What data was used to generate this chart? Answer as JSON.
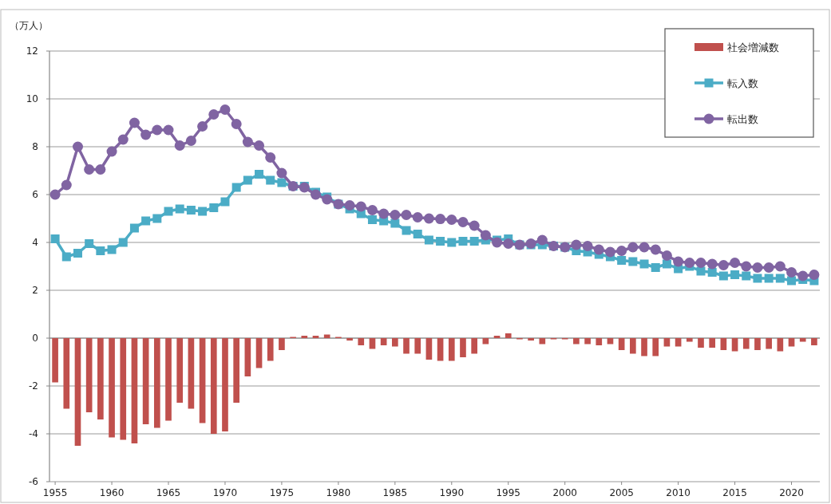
{
  "chart_data": {
    "type": "bar",
    "ylabel": "（万人）",
    "ylim": [
      -6,
      12
    ],
    "yticks": [
      -6,
      -4,
      -2,
      0,
      2,
      4,
      6,
      8,
      10,
      12
    ],
    "grid": "y",
    "legend": "top right",
    "categories": [
      "1955",
      null,
      null,
      null,
      null,
      "1960",
      null,
      null,
      null,
      null,
      "1965",
      null,
      null,
      null,
      null,
      "1970",
      null,
      null,
      null,
      null,
      "1975",
      null,
      null,
      null,
      null,
      "1980",
      null,
      null,
      null,
      null,
      "1985",
      null,
      null,
      null,
      null,
      "1990",
      null,
      null,
      null,
      null,
      "1995",
      null,
      null,
      null,
      null,
      "2000",
      null,
      null,
      null,
      null,
      "2005",
      null,
      null,
      null,
      null,
      "2010",
      null,
      null,
      null,
      null,
      "2015",
      null,
      null,
      null,
      null,
      "2020",
      null,
      null
    ],
    "series": [
      {
        "name": "社会増減数",
        "type": "bar",
        "color": "#c0504d",
        "values": [
          -1.85,
          -2.95,
          -4.5,
          -3.1,
          -3.4,
          -4.15,
          -4.25,
          -4.4,
          -3.6,
          -3.75,
          -3.45,
          -2.7,
          -2.95,
          -3.55,
          -4.0,
          -3.9,
          -2.7,
          -1.6,
          -1.25,
          -0.95,
          -0.5,
          0.05,
          0.1,
          0.1,
          0.15,
          0.05,
          -0.1,
          -0.3,
          -0.45,
          -0.3,
          -0.35,
          -0.65,
          -0.65,
          -0.9,
          -0.95,
          -0.95,
          -0.8,
          -0.65,
          -0.25,
          0.1,
          0.2,
          -0.05,
          -0.1,
          -0.25,
          -0.05,
          -0.05,
          -0.25,
          -0.25,
          -0.3,
          -0.25,
          -0.5,
          -0.65,
          -0.75,
          -0.75,
          -0.35,
          -0.35,
          -0.15,
          -0.4,
          -0.4,
          -0.5,
          -0.55,
          -0.45,
          -0.5,
          -0.45,
          -0.55,
          -0.35,
          -0.15,
          -0.3
        ]
      },
      {
        "name": "転入数",
        "type": "line",
        "marker": "square",
        "color": "#4bacc6",
        "values": [
          4.15,
          3.4,
          3.55,
          3.95,
          3.65,
          3.7,
          4.0,
          4.6,
          4.9,
          5.0,
          5.3,
          5.4,
          5.35,
          5.3,
          5.45,
          5.7,
          6.3,
          6.6,
          6.85,
          6.6,
          6.5,
          6.35,
          6.35,
          6.1,
          5.9,
          5.6,
          5.4,
          5.2,
          4.95,
          4.9,
          4.8,
          4.5,
          4.35,
          4.1,
          4.05,
          4.0,
          4.05,
          4.05,
          4.1,
          4.1,
          4.15,
          3.9,
          3.9,
          3.9,
          3.85,
          3.8,
          3.65,
          3.6,
          3.5,
          3.4,
          3.25,
          3.2,
          3.1,
          2.95,
          3.1,
          2.9,
          3.0,
          2.8,
          2.75,
          2.6,
          2.65,
          2.6,
          2.5,
          2.5,
          2.5,
          2.4,
          2.45,
          2.4
        ]
      },
      {
        "name": "転出数",
        "type": "line",
        "marker": "circle",
        "color": "#8064a2",
        "values": [
          6.0,
          6.4,
          8.0,
          7.05,
          7.05,
          7.8,
          8.3,
          9.0,
          8.5,
          8.7,
          8.7,
          8.05,
          8.25,
          8.85,
          9.35,
          9.55,
          8.95,
          8.2,
          8.05,
          7.55,
          6.9,
          6.35,
          6.3,
          6.0,
          5.8,
          5.6,
          5.55,
          5.5,
          5.35,
          5.2,
          5.15,
          5.15,
          5.05,
          5.0,
          4.98,
          4.95,
          4.85,
          4.7,
          4.3,
          4.0,
          3.95,
          3.9,
          3.95,
          4.1,
          3.85,
          3.8,
          3.9,
          3.85,
          3.7,
          3.6,
          3.65,
          3.8,
          3.8,
          3.7,
          3.45,
          3.2,
          3.15,
          3.15,
          3.1,
          3.05,
          3.15,
          3.0,
          2.95,
          2.95,
          3.0,
          2.75,
          2.6,
          2.65
        ]
      }
    ]
  }
}
